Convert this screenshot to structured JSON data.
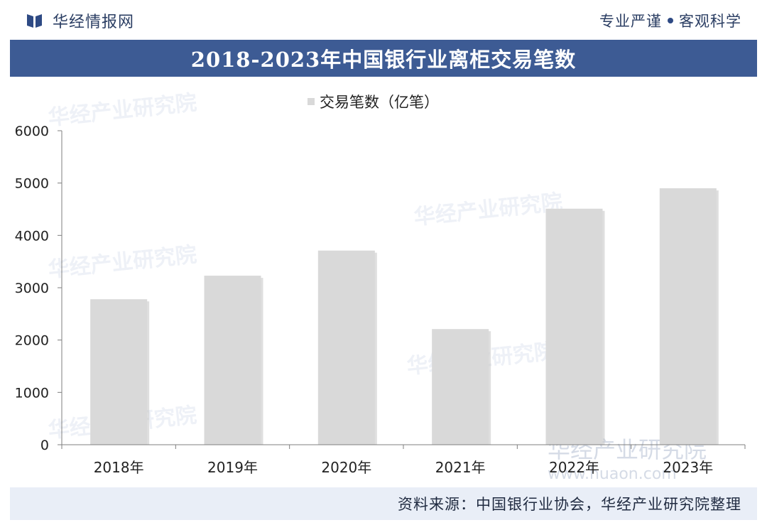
{
  "header": {
    "brand_name": "华经情报网",
    "slogan_left": "专业严谨",
    "slogan_right": "客观科学"
  },
  "title": "2018-2023年中国银行业离柜交易笔数",
  "watermark": {
    "text": "华经产业研究院",
    "url": "www.huaon.com"
  },
  "source": "资料来源：中国银行业协会，华经产业研究院整理",
  "colors": {
    "title_bar": "#3d5b94",
    "bar_fill": "#d9d9d9",
    "brand_text": "#2b3e63",
    "source_bar": "#e9eef7"
  },
  "chart_data": {
    "type": "bar",
    "categories": [
      "2018年",
      "2019年",
      "2020年",
      "2021年",
      "2022年",
      "2023年"
    ],
    "series": [
      {
        "name": "交易笔数（亿笔）",
        "values": [
          2780,
          3230,
          3710,
          2210,
          4510,
          4900
        ]
      }
    ],
    "xlabel": "",
    "ylabel": "",
    "ylim": [
      0,
      6000
    ],
    "yticks": [
      0,
      1000,
      2000,
      3000,
      4000,
      5000,
      6000
    ],
    "grid": false,
    "legend_position": "top-center"
  }
}
